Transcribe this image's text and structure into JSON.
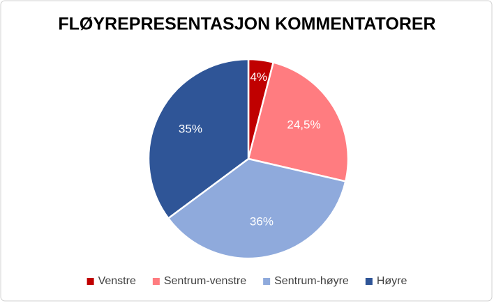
{
  "chart_data": {
    "type": "pie",
    "title": "FLØYREPRESENTASJON KOMMENTATORER",
    "categories": [
      "Venstre",
      "Sentrum-venstre",
      "Sentrum-høyre",
      "Høyre"
    ],
    "values": [
      4,
      24.5,
      36,
      35
    ],
    "value_labels": [
      "4%",
      "24,5%",
      "36%",
      "35%"
    ],
    "colors": [
      "#c00000",
      "#ff7c80",
      "#8faadc",
      "#2f5597"
    ],
    "legend": "bottom"
  }
}
